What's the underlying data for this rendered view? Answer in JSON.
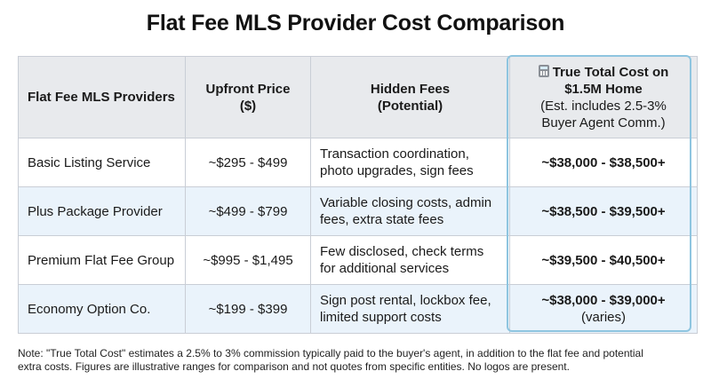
{
  "title": "Flat Fee MLS Provider Cost Comparison",
  "headers": {
    "provider": "Flat Fee MLS Providers",
    "upfront_line1": "Upfront Price",
    "upfront_line2": "($)",
    "hidden_line1": "Hidden Fees",
    "hidden_line2": "(Potential)",
    "total_line1": "True Total Cost on",
    "total_line2": "$1.5M Home",
    "total_line3": "(Est. includes 2.5-3%",
    "total_line4": "Buyer Agent Comm.)",
    "total_icon": "calculator-icon"
  },
  "rows": [
    {
      "provider": "Basic Listing Service",
      "upfront": "~$295 - $499",
      "hidden_line1": "Transaction coordination,",
      "hidden_line2": "photo upgrades, sign fees",
      "total": "~$38,000 - $38,500+",
      "total_sub": ""
    },
    {
      "provider": "Plus Package Provider",
      "upfront": "~$499 - $799",
      "hidden_line1": "Variable closing costs, admin",
      "hidden_line2": "fees, extra state fees",
      "total": "~$38,500 - $39,500+",
      "total_sub": ""
    },
    {
      "provider": "Premium Flat Fee Group",
      "upfront": "~$995 - $1,495",
      "hidden_line1": "Few disclosed, check terms",
      "hidden_line2": "for additional services",
      "total": "~$39,500 - $40,500+",
      "total_sub": ""
    },
    {
      "provider": "Economy Option Co.",
      "upfront": "~$199 - $399",
      "hidden_line1": "Sign post rental, lockbox fee,",
      "hidden_line2": "limited support costs",
      "total": "~$38,000 - $39,000+",
      "total_sub": "(varies)"
    }
  ],
  "note_line1": "Note: \"True Total Cost\" estimates a 2.5% to 3% commission typically paid to the buyer's agent, in addition to the flat fee and potential",
  "note_line2": "extra costs. Figures are illustrative ranges for comparison and not quotes from specific entities. No logos are present."
}
